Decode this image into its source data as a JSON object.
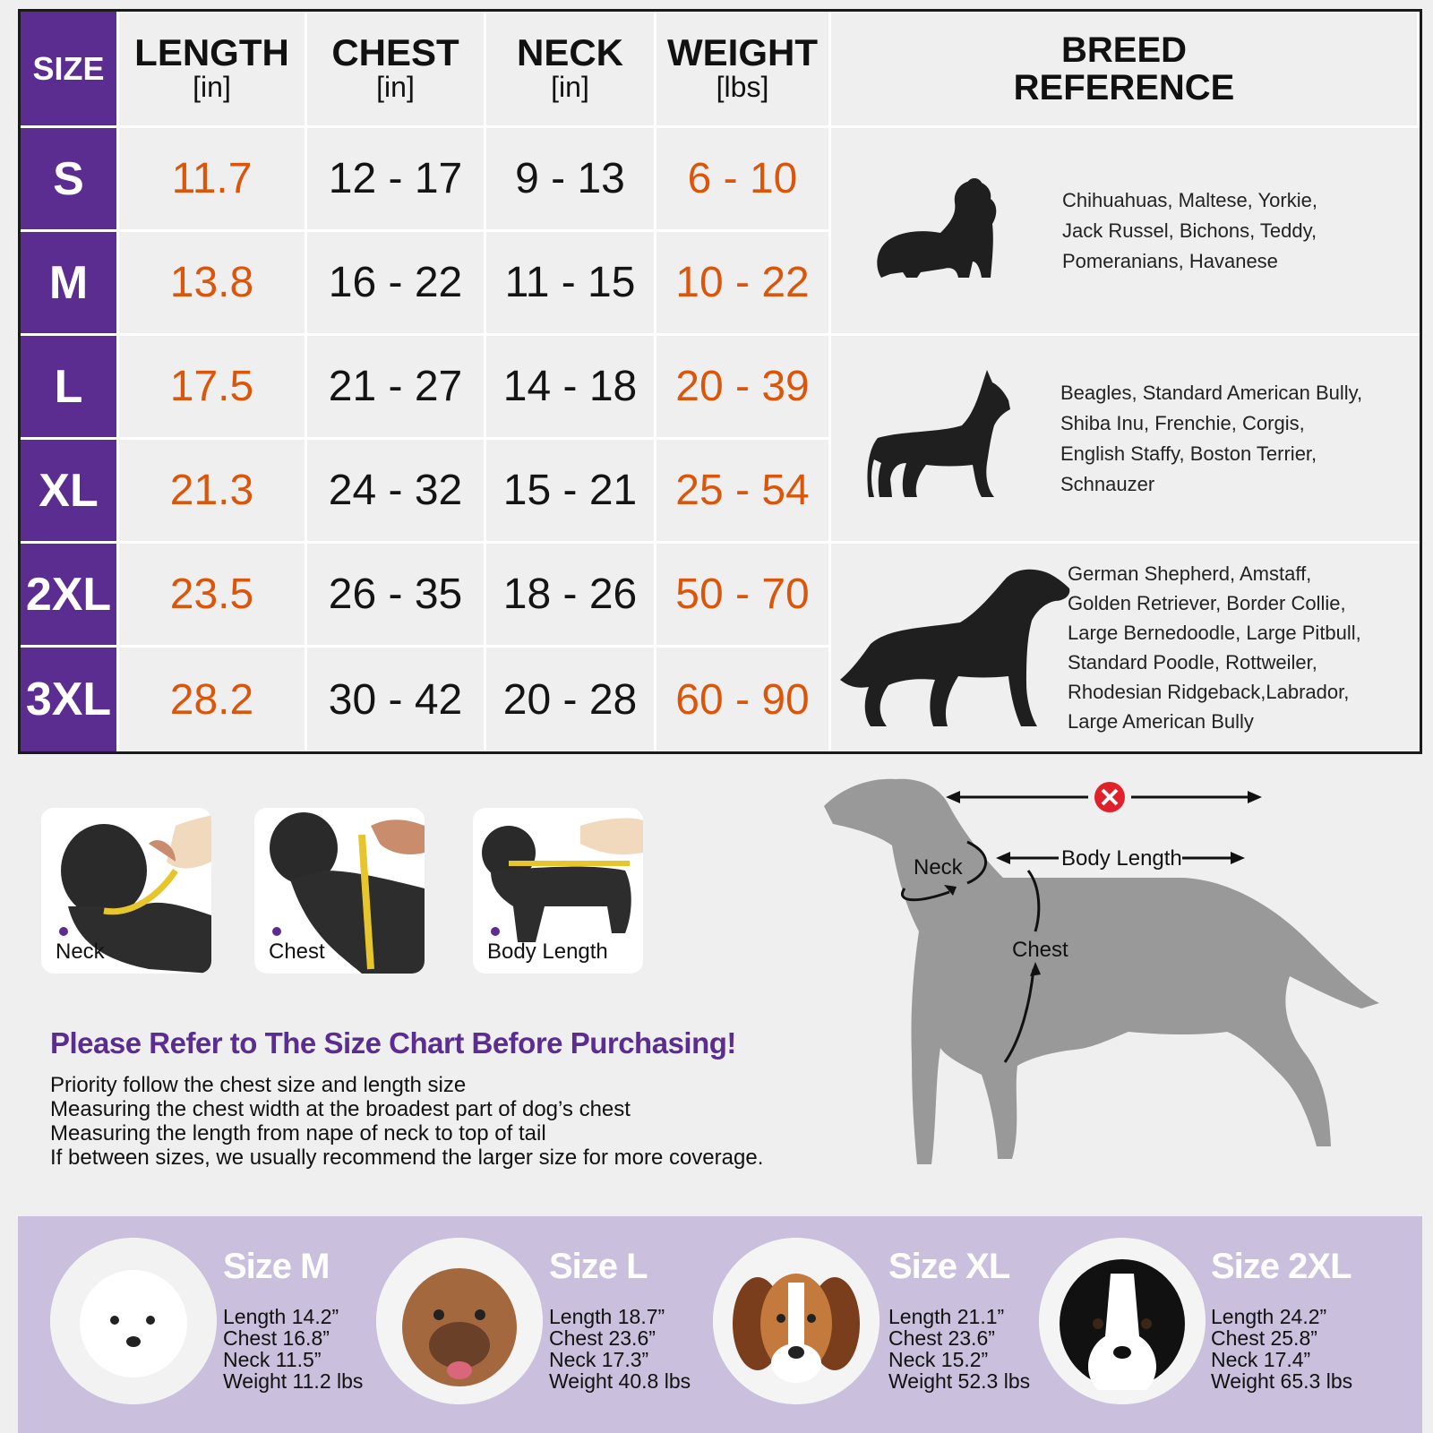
{
  "table": {
    "headers": {
      "size": "SIZE",
      "length": {
        "title": "LENGTH",
        "unit": "[in]"
      },
      "chest": {
        "title": "CHEST",
        "unit": "[in]"
      },
      "neck": {
        "title": "NECK",
        "unit": "[in]"
      },
      "weight": {
        "title": "WEIGHT",
        "unit": "[lbs]"
      },
      "breed_line1": "BREED",
      "breed_line2": "REFERENCE"
    },
    "rows": [
      {
        "size": "S",
        "length": "11.7",
        "chest": "12 - 17",
        "neck": "9 - 13",
        "weight": "6 - 10"
      },
      {
        "size": "M",
        "length": "13.8",
        "chest": "16 - 22",
        "neck": "11 - 15",
        "weight": "10 - 22"
      },
      {
        "size": "L",
        "length": "17.5",
        "chest": "21 - 27",
        "neck": "14 - 18",
        "weight": "20 - 39"
      },
      {
        "size": "XL",
        "length": "21.3",
        "chest": "24 - 32",
        "neck": "15 - 21",
        "weight": "25 - 54"
      },
      {
        "size": "2XL",
        "length": "23.5",
        "chest": "26 - 35",
        "neck": "18 - 26",
        "weight": "50 - 70"
      },
      {
        "size": "3XL",
        "length": "28.2",
        "chest": "30 - 42",
        "neck": "20 - 28",
        "weight": "60 - 90"
      }
    ],
    "breeds": [
      {
        "icon": "small-dog-silhouette-icon",
        "lines": [
          "Chihuahuas, Maltese, Yorkie,",
          "Jack Russel, Bichons, Teddy,",
          "Pomeranians, Havanese"
        ]
      },
      {
        "icon": "medium-dog-silhouette-icon",
        "lines": [
          "Beagles, Standard American Bully,",
          "Shiba Inu, Frenchie, Corgis,",
          "English Staffy, Boston Terrier,",
          "Schnauzer"
        ]
      },
      {
        "icon": "large-dog-silhouette-icon",
        "lines": [
          "German Shepherd, Amstaff,",
          "Golden Retriever, Border Collie,",
          "Large Bernedoodle, Large Pitbull,",
          "Standard Poodle, Rottweiler,",
          "Rhodesian Ridgeback,Labrador,",
          "Large American Bully"
        ]
      }
    ],
    "colors": {
      "size_column": "#5b2d90",
      "accent_values": "#d9560b"
    }
  },
  "measure_photos": [
    {
      "label": "Neck"
    },
    {
      "label": "Chest"
    },
    {
      "label": "Body Length"
    }
  ],
  "instructions": {
    "title": "Please Refer to The Size Chart Before Purchasing!",
    "lines": [
      "Priority follow the chest size and length size",
      "Measuring the chest width at the broadest part of dog’s chest",
      "Measuring the length from nape of neck to top of tail",
      "If between sizes, we usually recommend the larger size for more coverage."
    ]
  },
  "diagram": {
    "neck": "Neck",
    "body_length": "Body Length",
    "chest": "Chest",
    "wrong_icon": "x-circle-icon"
  },
  "examples": [
    {
      "title": "Size M",
      "lines": [
        "Length 14.2”",
        "Chest 16.8”",
        "Neck 11.5”",
        "Weight 11.2 lbs"
      ]
    },
    {
      "title": "Size L",
      "lines": [
        "Length 18.7”",
        "Chest 23.6”",
        "Neck 17.3”",
        "Weight 40.8 lbs"
      ]
    },
    {
      "title": "Size XL",
      "lines": [
        "Length 21.1”",
        "Chest 23.6”",
        "Neck 15.2”",
        "Weight 52.3 lbs"
      ]
    },
    {
      "title": "Size 2XL",
      "lines": [
        "Length 24.2”",
        "Chest 25.8”",
        "Neck 17.4”",
        "Weight 65.3 lbs"
      ]
    }
  ]
}
